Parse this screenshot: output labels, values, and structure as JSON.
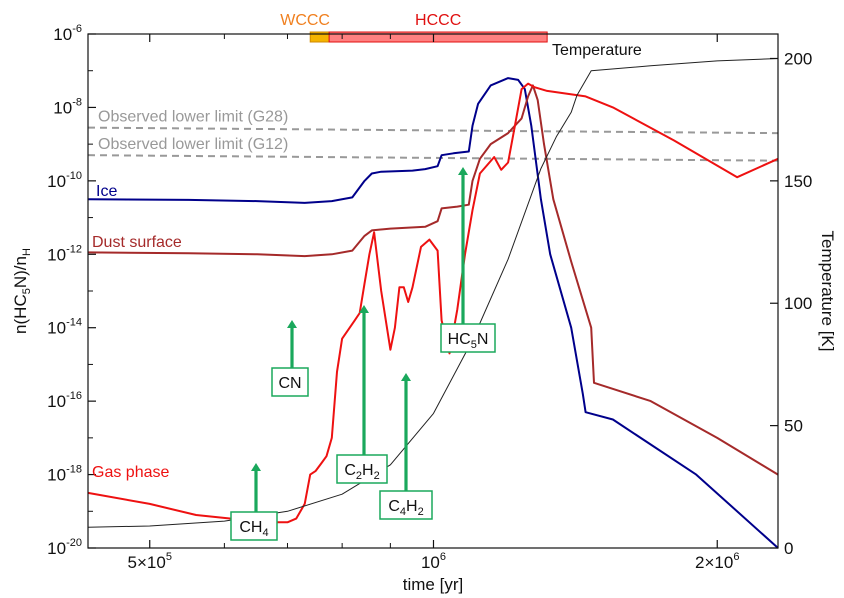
{
  "chart_data": {
    "type": "line",
    "xlabel": "time [yr]",
    "ylabel_left": "n(HC5N)/nH",
    "ylabel_right": "Temperature [K]",
    "xlim": [
      430000,
      2320000
    ],
    "ylim_left_log10": [
      -20,
      -6
    ],
    "ylim_right": [
      0,
      210
    ],
    "x_scale": "log",
    "y_scale_left": "log",
    "x_ticks": [
      {
        "value": 500000,
        "mant": "5×10",
        "exp": "5"
      },
      {
        "value": 1000000,
        "mant": "10",
        "exp": "6"
      },
      {
        "value": 2000000,
        "mant": "2×10",
        "exp": "6"
      }
    ],
    "y_ticks_left": [
      {
        "log": -6,
        "mant": "10",
        "exp": "-6"
      },
      {
        "log": -8,
        "mant": "10",
        "exp": "-8"
      },
      {
        "log": -10,
        "mant": "10",
        "exp": "-10"
      },
      {
        "log": -12,
        "mant": "10",
        "exp": "-12"
      },
      {
        "log": -14,
        "mant": "10",
        "exp": "-14"
      },
      {
        "log": -16,
        "mant": "10",
        "exp": "-16"
      },
      {
        "log": -18,
        "mant": "10",
        "exp": "-18"
      },
      {
        "log": -20,
        "mant": "10",
        "exp": "-20"
      }
    ],
    "y_ticks_right": [
      {
        "value": 0,
        "label": "0"
      },
      {
        "value": 50,
        "label": "50"
      },
      {
        "value": 100,
        "label": "100"
      },
      {
        "value": 150,
        "label": "150"
      },
      {
        "value": 200,
        "label": "200"
      }
    ],
    "colors": {
      "ice": "#00008b",
      "dust": "#a52a2a",
      "gas": "#ee1111",
      "temperature": "#222222",
      "observed": "#999999",
      "arrow": "#1aa85c",
      "wccc_bar": "#f5b400",
      "hccc_bar": "#ff8080",
      "wccc_text": "#f08020",
      "hccc_text": "#e01010"
    },
    "phase_bars": [
      {
        "label": "WCCC",
        "start": 740000,
        "end": 775000
      },
      {
        "label": "HCCC",
        "start": 775000,
        "end": 1320000
      }
    ],
    "observed_limits": [
      {
        "label": "Observed lower limit (G28)",
        "log_y_start": -8.55,
        "log_y_end": -8.7
      },
      {
        "label": "Observed lower limit (G12)",
        "log_y_start": -9.3,
        "log_y_end": -9.45
      }
    ],
    "series": [
      {
        "name": "Ice",
        "axis": "left",
        "x": [
          430000,
          550000,
          650000,
          730000,
          780000,
          820000,
          845000,
          860000,
          880000,
          950000,
          980000,
          1010000,
          1020000,
          1050000,
          1090000,
          1100000,
          1115000,
          1150000,
          1200000,
          1230000,
          1250000,
          1270000,
          1300000,
          1330000,
          1400000,
          1440000,
          1450000,
          1550000,
          1900000,
          2320000
        ],
        "log_y": [
          -10.5,
          -10.52,
          -10.55,
          -10.6,
          -10.55,
          -10.45,
          -10.0,
          -9.8,
          -9.75,
          -9.72,
          -9.68,
          -9.6,
          -9.3,
          -9.25,
          -9.2,
          -8.5,
          -7.9,
          -7.4,
          -7.2,
          -7.25,
          -7.5,
          -8.5,
          -10.5,
          -12.0,
          -14.0,
          -15.8,
          -16.3,
          -16.5,
          -18.0,
          -20.0
        ]
      },
      {
        "name": "Dust surface",
        "axis": "left",
        "x": [
          430000,
          550000,
          650000,
          730000,
          780000,
          820000,
          845000,
          860000,
          900000,
          980000,
          1010000,
          1020000,
          1060000,
          1090000,
          1100000,
          1120000,
          1150000,
          1200000,
          1240000,
          1260000,
          1275000,
          1290000,
          1310000,
          1340000,
          1400000,
          1470000,
          1480000,
          1700000,
          2000000,
          2320000
        ],
        "log_y": [
          -11.95,
          -11.97,
          -12.0,
          -12.05,
          -12.0,
          -11.9,
          -11.5,
          -11.35,
          -11.3,
          -11.25,
          -11.1,
          -10.75,
          -10.7,
          -10.65,
          -10.0,
          -9.4,
          -9.0,
          -8.7,
          -8.3,
          -7.7,
          -7.4,
          -7.8,
          -9.0,
          -10.5,
          -12.2,
          -14.0,
          -15.5,
          -16.0,
          -17.0,
          -18.0
        ]
      },
      {
        "name": "Gas phase",
        "axis": "left",
        "x": [
          430000,
          500000,
          560000,
          610000,
          650000,
          700000,
          715000,
          730000,
          740000,
          750000,
          760000,
          770000,
          780000,
          790000,
          800000,
          815000,
          825000,
          835000,
          845000,
          855000,
          865000,
          880000,
          900000,
          910000,
          920000,
          930000,
          940000,
          950000,
          970000,
          990000,
          1010000,
          1020000,
          1040000,
          1060000,
          1080000,
          1100000,
          1120000,
          1160000,
          1180000,
          1200000,
          1220000,
          1240000,
          1260000,
          1280000,
          1320000,
          1450000,
          1550000,
          1800000,
          2100000,
          2320000
        ],
        "log_y": [
          -18.5,
          -18.8,
          -19.1,
          -19.2,
          -19.3,
          -19.3,
          -19.2,
          -18.8,
          -18.0,
          -17.9,
          -17.7,
          -17.5,
          -17.0,
          -15.2,
          -14.3,
          -14.0,
          -13.8,
          -13.6,
          -12.8,
          -12.0,
          -11.4,
          -13.0,
          -14.6,
          -14.0,
          -12.9,
          -12.9,
          -13.3,
          -12.9,
          -11.8,
          -11.6,
          -11.9,
          -13.8,
          -14.7,
          -13.5,
          -12.0,
          -10.8,
          -9.8,
          -9.35,
          -9.7,
          -9.5,
          -8.5,
          -7.5,
          -7.35,
          -7.45,
          -7.55,
          -7.7,
          -8.0,
          -8.9,
          -9.9,
          -9.4
        ]
      },
      {
        "name": "Temperature",
        "axis": "right",
        "x": [
          430000,
          500000,
          600000,
          700000,
          800000,
          900000,
          1000000,
          1100000,
          1200000,
          1300000,
          1350000,
          1400000,
          1420000,
          1470000,
          1700000,
          2000000,
          2320000
        ],
        "y": [
          8.5,
          9,
          11,
          15,
          22,
          34,
          55,
          85,
          118,
          155,
          168,
          178,
          185,
          195,
          197,
          199,
          200
        ]
      }
    ],
    "series_labels": [
      {
        "key": "ice",
        "text": "Ice"
      },
      {
        "key": "dust",
        "text": "Dust surface"
      },
      {
        "key": "gas",
        "text": "Gas phase"
      },
      {
        "key": "temp",
        "text": "Temperature"
      }
    ],
    "annotations": [
      {
        "id": "ch4",
        "base": "CH",
        "sub": "4",
        "tail": "",
        "mid": "",
        "sub2": ""
      },
      {
        "id": "cn",
        "base": "CN",
        "sub": "",
        "tail": "",
        "mid": "",
        "sub2": ""
      },
      {
        "id": "c2h2",
        "base": "C",
        "sub": "2",
        "mid": "H",
        "sub2": "2",
        "tail": ""
      },
      {
        "id": "c4h2",
        "base": "C",
        "sub": "4",
        "mid": "H",
        "sub2": "2",
        "tail": ""
      },
      {
        "id": "hc5n",
        "base": "HC",
        "sub": "5",
        "mid": "N",
        "sub2": "",
        "tail": ""
      }
    ]
  }
}
